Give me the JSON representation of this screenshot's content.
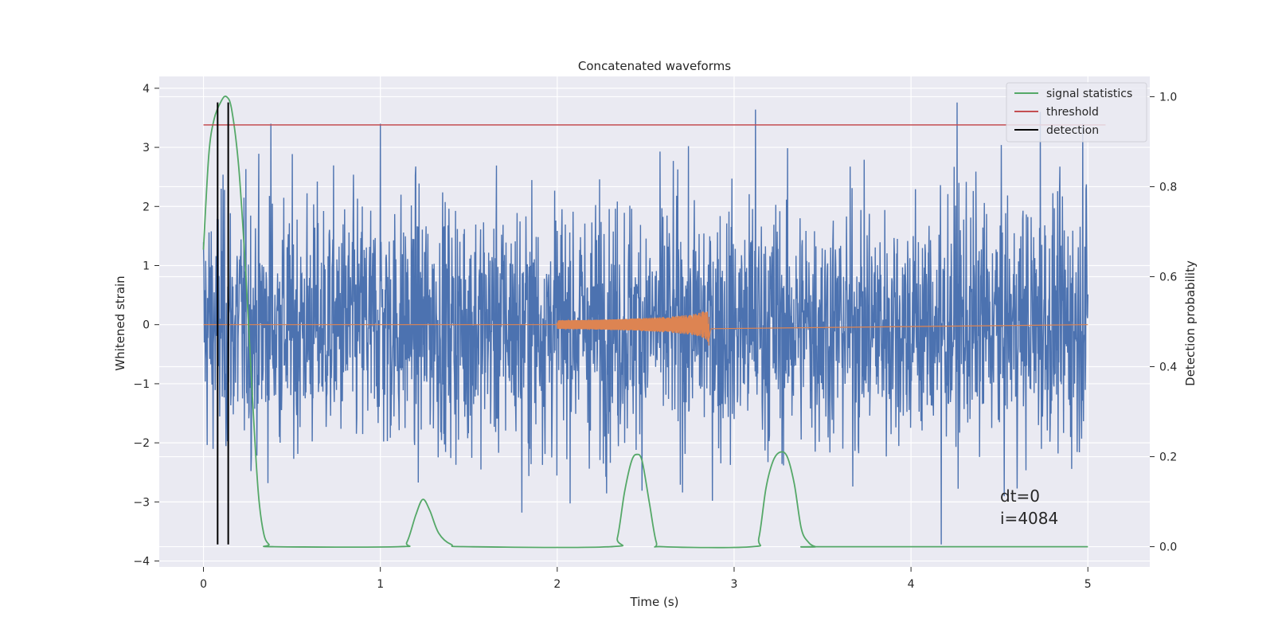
{
  "chart_data": {
    "type": "line",
    "title": "Concatenated waveforms",
    "xlabel": "Time (s)",
    "ylabel": "Whitened strain",
    "ylabel_right": "Detection probability",
    "xlim": [
      -0.25,
      5.35
    ],
    "ylim": [
      -4.1,
      4.2
    ],
    "ylim_right": [
      -0.045,
      1.045
    ],
    "x_ticks": [
      0,
      1,
      2,
      3,
      4,
      5
    ],
    "y_ticks": [
      -4,
      -3,
      -2,
      -1,
      0,
      1,
      2,
      3,
      4
    ],
    "y_ticks_right": [
      0.0,
      0.2,
      0.4,
      0.6,
      0.8,
      1.0
    ],
    "x_tick_labels": [
      "0",
      "1",
      "2",
      "3",
      "4",
      "5"
    ],
    "y_tick_labels": [
      "−4",
      "−3",
      "−2",
      "−1",
      "0",
      "1",
      "2",
      "3",
      "4"
    ],
    "y_tick_labels_right": [
      "0.0",
      "0.2",
      "0.4",
      "0.6",
      "0.8",
      "1.0"
    ],
    "grid": true,
    "legend_position": "top-right",
    "series": [
      {
        "name": "",
        "axis": "left",
        "color": "#4c72b0",
        "kind": "noise",
        "x_range": [
          0,
          5
        ],
        "amplitude_envelope": 1.0,
        "peak_points": [
          [
            0.38,
            3.4
          ],
          [
            1.0,
            3.4
          ],
          [
            3.12,
            3.64
          ],
          [
            4.26,
            3.76
          ],
          [
            4.73,
            3.6
          ],
          [
            4.17,
            -3.72
          ],
          [
            1.8,
            -3.18
          ],
          [
            0.1,
            2.3
          ],
          [
            4.97,
            3.4
          ]
        ]
      },
      {
        "name": "",
        "axis": "left",
        "color": "#dd8452",
        "kind": "chirp",
        "x_range": [
          2.0,
          2.87
        ],
        "peak_time": 2.86,
        "peak_amplitude": 0.42
      },
      {
        "name": "signal statistics",
        "axis": "right",
        "color": "#55a868",
        "x": [
          0.0,
          0.03,
          0.06,
          0.1,
          0.13,
          0.16,
          0.2,
          0.24,
          0.28,
          0.31,
          0.34,
          0.37,
          0.4,
          1.1,
          1.15,
          1.2,
          1.24,
          1.28,
          1.33,
          1.4,
          1.5,
          2.3,
          2.34,
          2.38,
          2.42,
          2.45,
          2.48,
          2.52,
          2.56,
          2.6,
          3.1,
          3.14,
          3.18,
          3.22,
          3.26,
          3.3,
          3.34,
          3.38,
          3.42,
          3.46,
          3.5,
          5.0
        ],
        "values": [
          0.66,
          0.87,
          0.95,
          0.99,
          1.0,
          0.97,
          0.84,
          0.6,
          0.31,
          0.12,
          0.03,
          0.005,
          0.0,
          0.0,
          0.01,
          0.07,
          0.105,
          0.08,
          0.03,
          0.005,
          0.0,
          0.0,
          0.02,
          0.12,
          0.19,
          0.205,
          0.19,
          0.1,
          0.01,
          0.0,
          0.0,
          0.02,
          0.13,
          0.19,
          0.21,
          0.2,
          0.14,
          0.04,
          0.01,
          0.0,
          0.0,
          0.0
        ]
      },
      {
        "name": "threshold",
        "axis": "left",
        "color": "#c44e52",
        "x": [
          0,
          5.1
        ],
        "values": [
          3.38,
          3.38
        ]
      }
    ],
    "detections": {
      "name": "detection",
      "color": "#000000",
      "x": [
        0.08,
        0.14
      ],
      "y_range": [
        -3.72,
        3.76
      ]
    },
    "annotations": [
      "dt=0",
      "i=4084"
    ]
  }
}
